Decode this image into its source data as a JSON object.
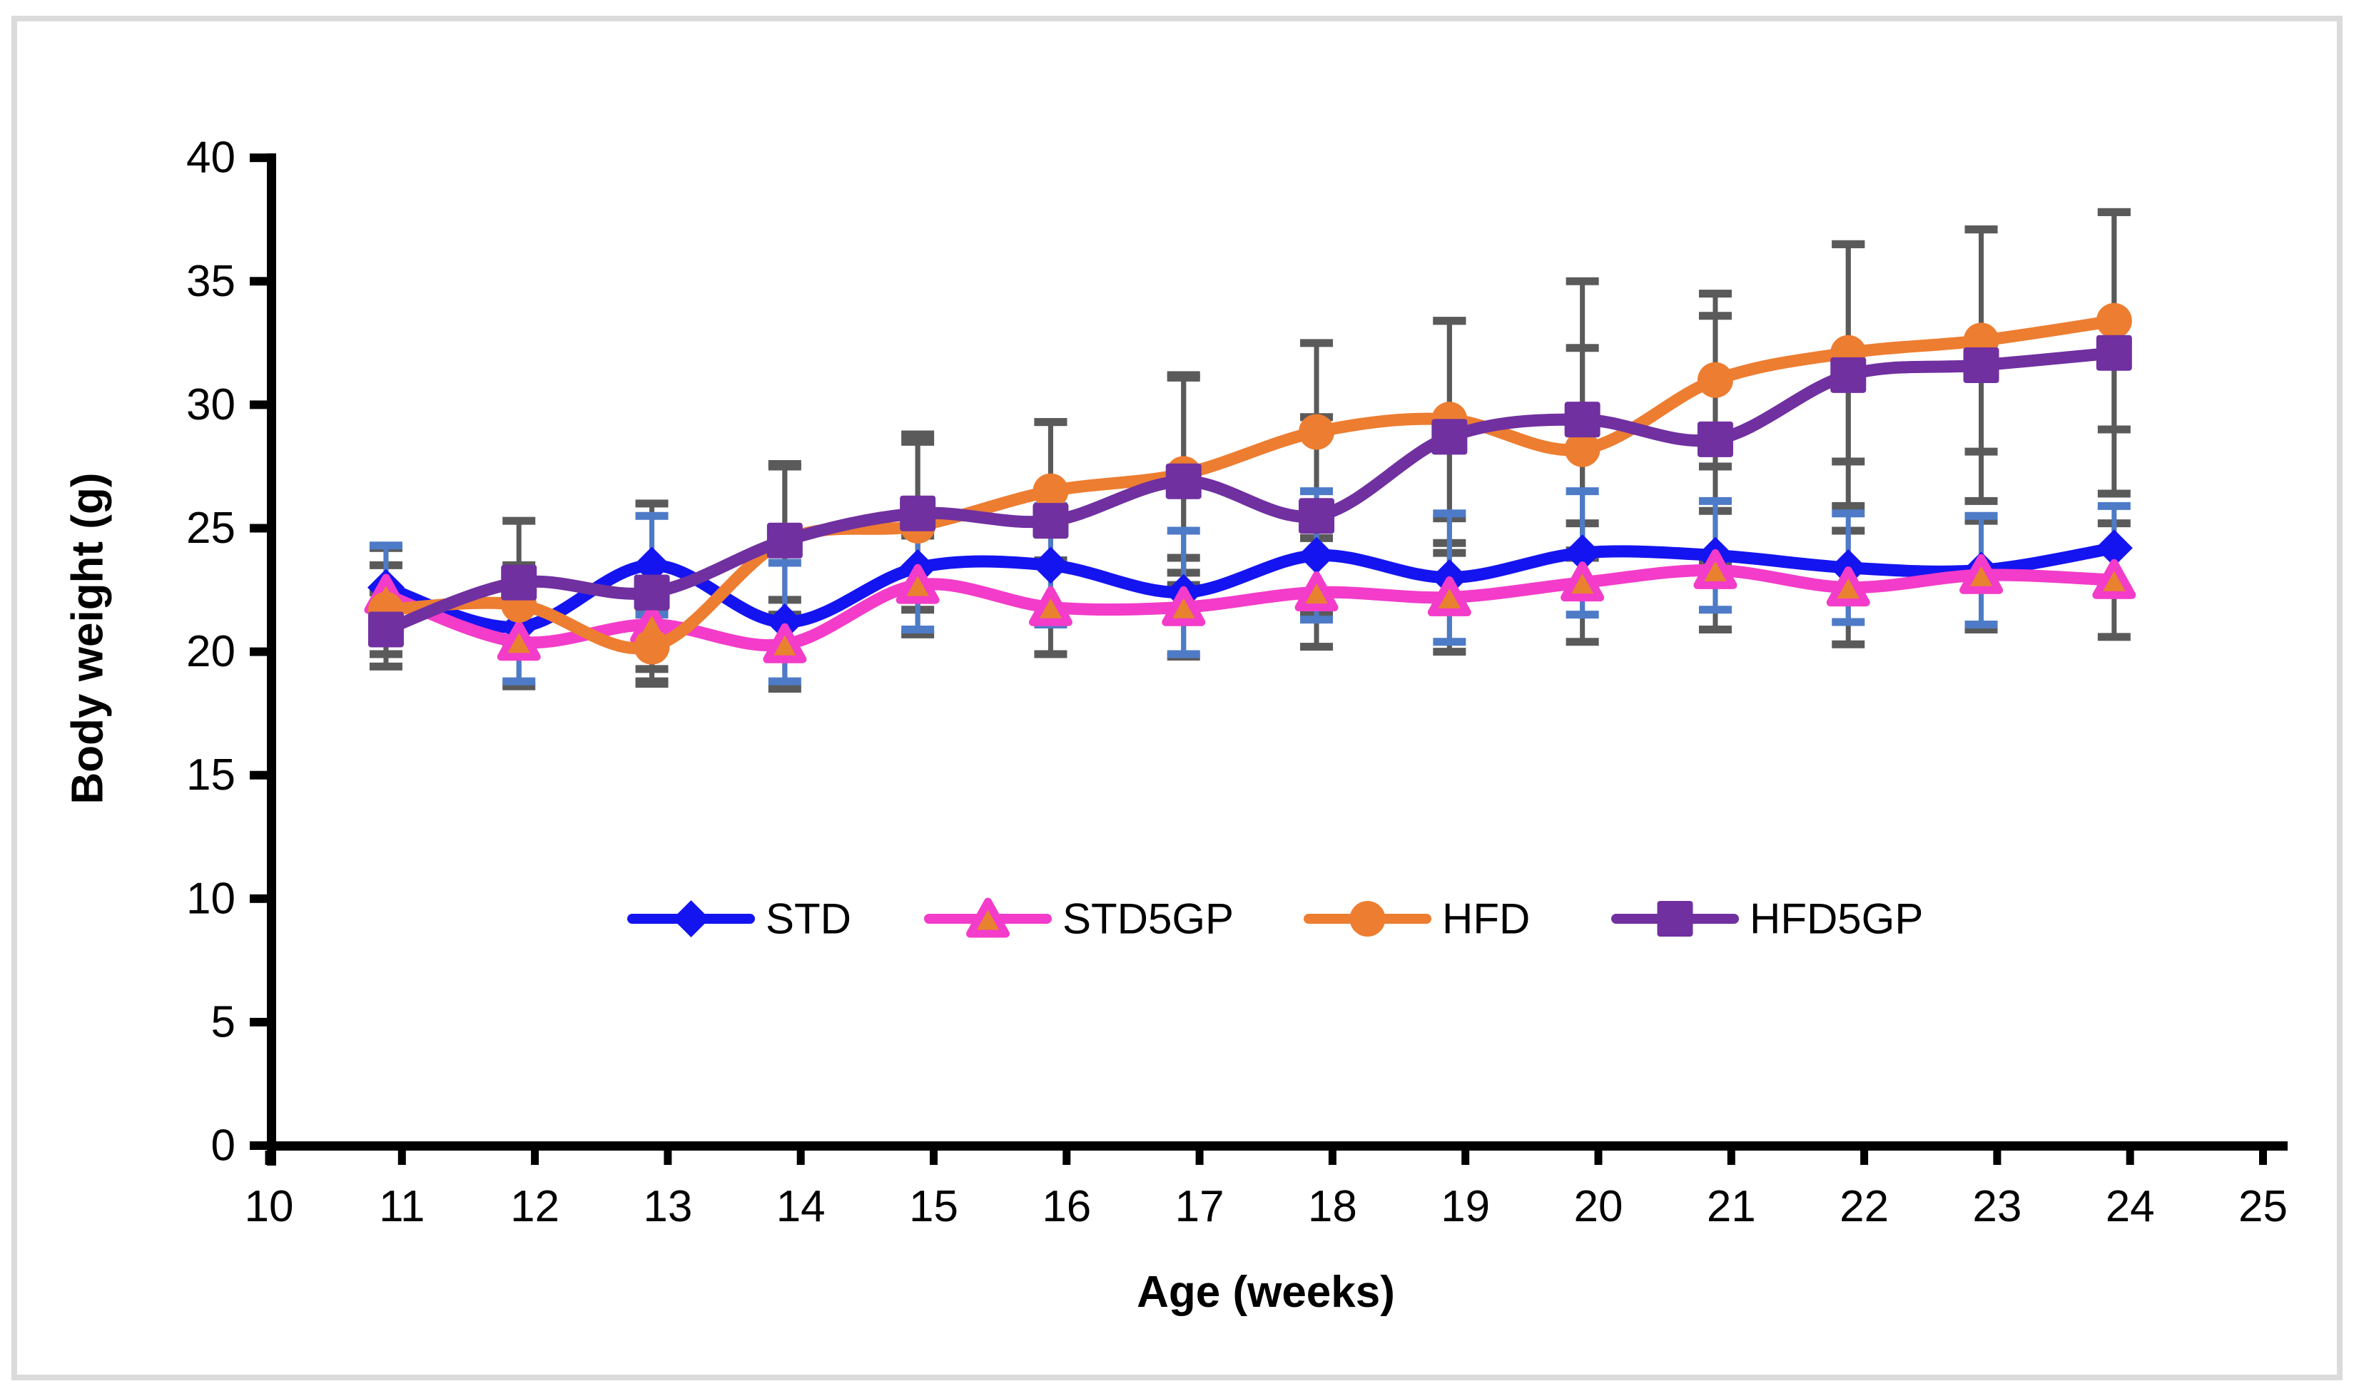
{
  "chart_data": {
    "type": "line",
    "title": "",
    "xlabel": "Age (weeks)",
    "ylabel": "Body weight (g)",
    "x": [
      11,
      12,
      13,
      14,
      15,
      16,
      17,
      18,
      19,
      20,
      21,
      22,
      23,
      24
    ],
    "xlim": [
      10,
      25
    ],
    "ylim": [
      0,
      40
    ],
    "x_ticks": [
      10,
      11,
      12,
      13,
      14,
      15,
      16,
      17,
      18,
      19,
      20,
      21,
      22,
      23,
      24,
      25
    ],
    "y_ticks": [
      0,
      5,
      10,
      15,
      20,
      25,
      30,
      35,
      40
    ],
    "grid": false,
    "legend_position": "inside-bottom-center",
    "x_plot_offset_weeks": -0.12,
    "error_bars": "per-point standard deviation, caps shown",
    "series": [
      {
        "name": "STD",
        "marker": "diamond",
        "color": "#1414F0",
        "error_color": "#4E7BC7",
        "values": [
          22.6,
          21.0,
          23.5,
          21.2,
          23.4,
          23.5,
          22.4,
          23.9,
          23.0,
          24.0,
          23.9,
          23.4,
          23.3,
          24.2
        ],
        "sd": [
          1.7,
          2.2,
          2.0,
          2.4,
          2.5,
          2.4,
          2.5,
          2.6,
          2.6,
          2.5,
          2.2,
          2.2,
          2.2,
          1.7
        ]
      },
      {
        "name": "STD5GP",
        "marker": "triangle",
        "color": "#F33CC9",
        "marker_fill": "#E8822F",
        "error_color": "#5A5A5A",
        "values": [
          22.3,
          20.4,
          21.1,
          20.3,
          22.7,
          21.8,
          21.8,
          22.4,
          22.2,
          22.8,
          23.3,
          22.6,
          23.1,
          22.9
        ],
        "sd": [
          1.9,
          1.8,
          1.8,
          1.8,
          2.0,
          1.9,
          2.0,
          2.2,
          2.2,
          2.4,
          2.4,
          2.3,
          2.2,
          2.3
        ]
      },
      {
        "name": "HFD",
        "marker": "circle",
        "color": "#ED7D31",
        "error_color": "#5A5A5A",
        "values": [
          21.7,
          21.9,
          20.2,
          24.5,
          25.1,
          26.5,
          27.2,
          28.9,
          29.4,
          28.2,
          31.0,
          32.1,
          32.6,
          33.4
        ],
        "sd": [
          1.8,
          1.6,
          1.5,
          3.0,
          3.4,
          2.8,
          4.0,
          3.6,
          4.0,
          4.1,
          3.5,
          4.4,
          4.5,
          4.4
        ]
      },
      {
        "name": "HFD5GP",
        "marker": "square",
        "color": "#7030A0",
        "error_color": "#5A5A5A",
        "values": [
          20.9,
          22.8,
          22.4,
          24.5,
          25.6,
          25.3,
          26.9,
          25.5,
          28.7,
          29.4,
          28.6,
          31.2,
          31.6,
          32.1
        ],
        "sd": [
          1.5,
          2.5,
          3.6,
          3.1,
          3.2,
          4.0,
          4.2,
          4.0,
          4.7,
          5.6,
          5.0,
          5.3,
          5.5,
          5.7
        ]
      }
    ],
    "colors": {
      "axis": "#000000",
      "frame_border": "#DBDBDB",
      "gray_error": "#5A5A5A",
      "std_error": "#4E7BC7"
    }
  }
}
